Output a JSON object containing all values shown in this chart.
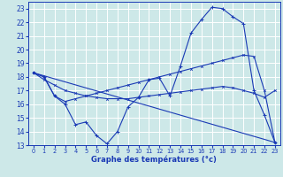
{
  "bg_color": "#cde8e8",
  "grid_color": "#ffffff",
  "line_color": "#1a3ab5",
  "xlabel": "Graphe des températures (°c)",
  "xlim": [
    -0.5,
    23.5
  ],
  "ylim": [
    13,
    23.5
  ],
  "yticks": [
    13,
    14,
    15,
    16,
    17,
    18,
    19,
    20,
    21,
    22,
    23
  ],
  "xticks": [
    0,
    1,
    2,
    3,
    4,
    5,
    6,
    7,
    8,
    9,
    10,
    11,
    12,
    13,
    14,
    15,
    16,
    17,
    18,
    19,
    20,
    21,
    22,
    23
  ],
  "series1_x": [
    0,
    1,
    2,
    3,
    4,
    5,
    6,
    7,
    8,
    9,
    10,
    11,
    12,
    13,
    14,
    15,
    16,
    17,
    18,
    19,
    20,
    21,
    22,
    23
  ],
  "series1_y": [
    18.3,
    18.0,
    16.6,
    16.2,
    16.4,
    16.6,
    16.8,
    17.0,
    17.2,
    17.4,
    17.6,
    17.8,
    18.0,
    18.2,
    18.4,
    18.6,
    18.8,
    19.0,
    19.2,
    19.4,
    19.6,
    19.5,
    17.0,
    13.2
  ],
  "series2_x": [
    0,
    1,
    2,
    3,
    4,
    5,
    6,
    7,
    8,
    9,
    10,
    11,
    12,
    13,
    14,
    15,
    16,
    17,
    18,
    19,
    20,
    21,
    22,
    23
  ],
  "series2_y": [
    18.3,
    18.0,
    16.6,
    16.0,
    14.5,
    14.7,
    13.7,
    13.1,
    14.0,
    15.8,
    16.5,
    17.8,
    17.9,
    16.6,
    18.8,
    21.2,
    22.2,
    23.1,
    23.0,
    22.4,
    21.9,
    17.0,
    15.2,
    13.2
  ],
  "series3_x": [
    0,
    1,
    2,
    3,
    4,
    5,
    6,
    7,
    8,
    9,
    10,
    11,
    12,
    13,
    14,
    15,
    16,
    17,
    18,
    19,
    20,
    21,
    22,
    23
  ],
  "series3_y": [
    18.3,
    17.8,
    17.4,
    17.0,
    16.8,
    16.6,
    16.5,
    16.4,
    16.4,
    16.4,
    16.5,
    16.6,
    16.7,
    16.8,
    16.9,
    17.0,
    17.1,
    17.2,
    17.3,
    17.2,
    17.0,
    16.8,
    16.5,
    17.0
  ],
  "series4_x": [
    0,
    23
  ],
  "series4_y": [
    18.3,
    13.2
  ]
}
